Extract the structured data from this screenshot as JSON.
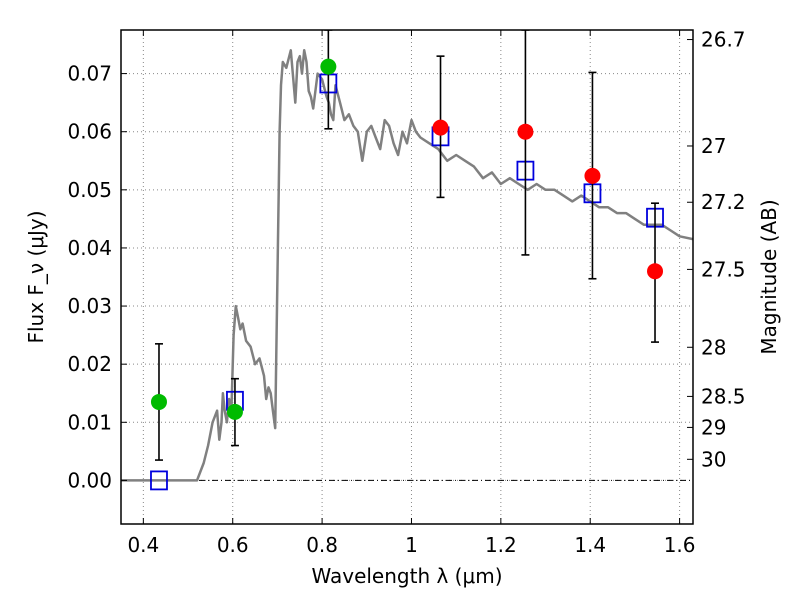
{
  "chart_data": {
    "type": "scatter",
    "xlabel": "Wavelength λ (μm)",
    "ylabel": "Flux F_ν (μJy)",
    "y2label": "Magnitude (AB)",
    "xlim": [
      0.35,
      1.63
    ],
    "ylim": [
      -0.0075,
      0.0775
    ],
    "grid": true,
    "x_ticks": [
      {
        "value": 0.4,
        "label": "0.4"
      },
      {
        "value": 0.6,
        "label": "0.6"
      },
      {
        "value": 0.8,
        "label": "0.8"
      },
      {
        "value": 1.0,
        "label": "1"
      },
      {
        "value": 1.2,
        "label": "1.2"
      },
      {
        "value": 1.4,
        "label": "1.4"
      },
      {
        "value": 1.6,
        "label": "1.6"
      }
    ],
    "y_ticks": [
      {
        "value": 0.0,
        "label": "0.00"
      },
      {
        "value": 0.01,
        "label": "0.01"
      },
      {
        "value": 0.02,
        "label": "0.02"
      },
      {
        "value": 0.03,
        "label": "0.03"
      },
      {
        "value": 0.04,
        "label": "0.04"
      },
      {
        "value": 0.05,
        "label": "0.05"
      },
      {
        "value": 0.06,
        "label": "0.06"
      },
      {
        "value": 0.07,
        "label": "0.07"
      }
    ],
    "y2_ticks": [
      {
        "value": 26.7,
        "label": "26.7"
      },
      {
        "value": 27.0,
        "label": "27"
      },
      {
        "value": 27.2,
        "label": "27.2"
      },
      {
        "value": 27.5,
        "label": "27.5"
      },
      {
        "value": 28.0,
        "label": "28"
      },
      {
        "value": 28.5,
        "label": "28.5"
      },
      {
        "value": 29.0,
        "label": "29"
      },
      {
        "value": 30.0,
        "label": "30"
      }
    ],
    "observed": [
      {
        "x": 0.435,
        "y": 0.0135,
        "err_low": 0.0035,
        "err_high": 0.0235,
        "color": "#00bb00"
      },
      {
        "x": 0.605,
        "y": 0.0118,
        "err_low": 0.006,
        "err_high": 0.0175,
        "color": "#00bb00"
      },
      {
        "x": 0.814,
        "y": 0.0712,
        "err_low": 0.0605,
        "err_high": 0.0775,
        "color": "#00bb00"
      },
      {
        "x": 1.065,
        "y": 0.0607,
        "err_low": 0.0487,
        "err_high": 0.073,
        "color": "#ff0000"
      },
      {
        "x": 1.255,
        "y": 0.06,
        "err_low": 0.0388,
        "err_high": 0.0775,
        "color": "#ff0000"
      },
      {
        "x": 1.405,
        "y": 0.0524,
        "err_low": 0.0347,
        "err_high": 0.0702,
        "color": "#ff0000"
      },
      {
        "x": 1.545,
        "y": 0.036,
        "err_low": 0.0238,
        "err_high": 0.0477,
        "color": "#ff0000"
      }
    ],
    "model_photometry": [
      {
        "x": 0.435,
        "y": 0.0
      },
      {
        "x": 0.605,
        "y": 0.0137
      },
      {
        "x": 0.814,
        "y": 0.0683
      },
      {
        "x": 1.065,
        "y": 0.0592
      },
      {
        "x": 1.255,
        "y": 0.0533
      },
      {
        "x": 1.405,
        "y": 0.0494
      },
      {
        "x": 1.545,
        "y": 0.0452
      }
    ],
    "model_spectrum": {
      "x": [
        0.35,
        0.52,
        0.535,
        0.545,
        0.555,
        0.565,
        0.57,
        0.575,
        0.578,
        0.582,
        0.587,
        0.592,
        0.597,
        0.602,
        0.607,
        0.612,
        0.617,
        0.622,
        0.63,
        0.64,
        0.65,
        0.66,
        0.67,
        0.675,
        0.68,
        0.685,
        0.69,
        0.695,
        0.705,
        0.708,
        0.712,
        0.72,
        0.73,
        0.74,
        0.745,
        0.75,
        0.755,
        0.76,
        0.765,
        0.77,
        0.775,
        0.78,
        0.79,
        0.8,
        0.81,
        0.815,
        0.82,
        0.825,
        0.83,
        0.84,
        0.85,
        0.86,
        0.87,
        0.88,
        0.89,
        0.9,
        0.91,
        0.92,
        0.93,
        0.94,
        0.95,
        0.96,
        0.97,
        0.98,
        0.99,
        1.0,
        1.01,
        1.02,
        1.04,
        1.06,
        1.08,
        1.1,
        1.12,
        1.14,
        1.16,
        1.18,
        1.2,
        1.22,
        1.24,
        1.26,
        1.28,
        1.3,
        1.32,
        1.34,
        1.36,
        1.38,
        1.4,
        1.42,
        1.44,
        1.46,
        1.48,
        1.5,
        1.52,
        1.54,
        1.56,
        1.58,
        1.6,
        1.63
      ],
      "y": [
        0.0,
        0.0,
        0.003,
        0.006,
        0.01,
        0.012,
        0.007,
        0.01,
        0.015,
        0.012,
        0.01,
        0.014,
        0.012,
        0.025,
        0.03,
        0.028,
        0.026,
        0.027,
        0.024,
        0.023,
        0.02,
        0.021,
        0.018,
        0.014,
        0.016,
        0.015,
        0.012,
        0.009,
        0.06,
        0.068,
        0.072,
        0.071,
        0.074,
        0.065,
        0.072,
        0.073,
        0.07,
        0.074,
        0.072,
        0.067,
        0.066,
        0.064,
        0.07,
        0.069,
        0.066,
        0.065,
        0.063,
        0.062,
        0.068,
        0.065,
        0.062,
        0.063,
        0.061,
        0.06,
        0.055,
        0.06,
        0.061,
        0.059,
        0.057,
        0.062,
        0.061,
        0.058,
        0.056,
        0.06,
        0.058,
        0.062,
        0.06,
        0.059,
        0.058,
        0.057,
        0.055,
        0.056,
        0.055,
        0.054,
        0.052,
        0.053,
        0.051,
        0.052,
        0.051,
        0.05,
        0.051,
        0.05,
        0.05,
        0.049,
        0.048,
        0.049,
        0.048,
        0.047,
        0.047,
        0.046,
        0.046,
        0.045,
        0.044,
        0.044,
        0.044,
        0.043,
        0.042,
        0.0415
      ]
    },
    "colors": {
      "model_line": "#808080",
      "model_squares": "#0000dd",
      "error_bars": "#000000",
      "grid": "#888888"
    }
  }
}
